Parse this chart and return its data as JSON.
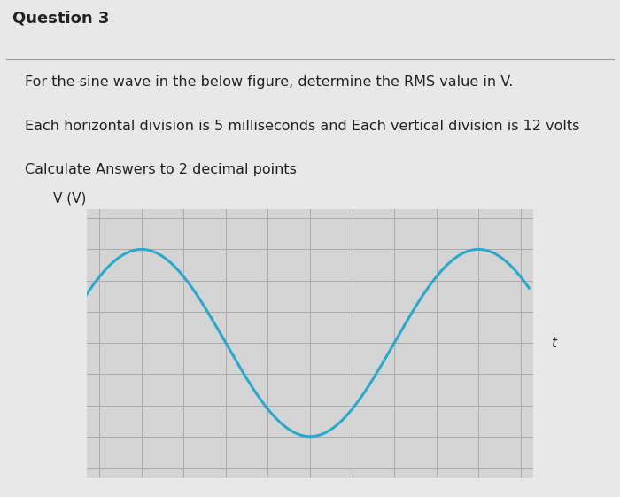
{
  "title_text": "Question 3",
  "line1": "For the sine wave in the below figure, determine the RMS value in V.",
  "line2": "Each horizontal division is 5 milliseconds and Each vertical division is 12 volts",
  "line3": "Calculate Answers to 2 decimal points",
  "ylabel": "V (V)",
  "xlabel": "t",
  "background_color": "#e8e8e8",
  "plot_bg_color": "#d4d4d4",
  "grid_color": "#aaaaaa",
  "sine_color": "#29aacc",
  "sine_linewidth": 2.2,
  "n_cols": 10,
  "n_rows": 8,
  "amplitude": 3.0,
  "phase_shift": -1.0,
  "period_divisions": 8,
  "y_min": -4,
  "y_max": 4,
  "axis_color": "#111111",
  "text_color": "#222222",
  "title_fontsize": 13,
  "body_fontsize": 11.5,
  "divider_color": "#999999",
  "divider_linewidth": 0.8
}
